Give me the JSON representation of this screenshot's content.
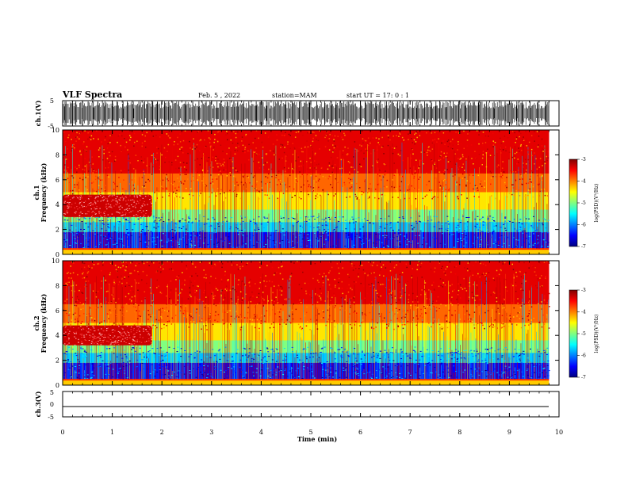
{
  "header": {
    "title": "VLF Spectra",
    "date": "Feb. 5 , 2022",
    "station": "station=MAM",
    "start": "start  UT  =    17: 0  : 1"
  },
  "chart_data": [
    {
      "type": "line",
      "panel": "ch1-waveform",
      "ylabel": "ch.1(V)",
      "ylim": [
        -5,
        5
      ],
      "yticks": [
        "5",
        "-5"
      ]
    },
    {
      "type": "heatmap",
      "panel": "ch1-spectrogram",
      "ylabel_line1": "ch.1",
      "ylabel_line2": "Frequency (kHz)",
      "ylim": [
        0,
        10
      ],
      "yticks": [
        "0",
        "2",
        "4",
        "6",
        "8",
        "10"
      ],
      "colorbar": {
        "label": "log(PSD)(V²/Hz)",
        "range": [
          -7,
          -3
        ],
        "ticks": [
          "-3",
          "-4",
          "-5",
          "-6",
          "-7"
        ]
      },
      "features": [
        {
          "name": "emission-band",
          "t_min": [
            0,
            1.8
          ],
          "f_khz": [
            3.0,
            4.8
          ],
          "log_psd": -3.3
        },
        {
          "name": "background-high",
          "f_khz": [
            5,
            10
          ],
          "log_psd": -3.6
        },
        {
          "name": "background-low",
          "f_khz": [
            0.5,
            2.5
          ],
          "log_psd": -6.5
        }
      ]
    },
    {
      "type": "heatmap",
      "panel": "ch2-spectrogram",
      "ylabel_line1": "ch.2",
      "ylabel_line2": "Frequency (kHz)",
      "ylim": [
        0,
        10
      ],
      "yticks": [
        "0",
        "2",
        "4",
        "6",
        "8",
        "10"
      ],
      "colorbar": {
        "label": "log(PSD)(V²/Hz)",
        "range": [
          -7,
          -3
        ],
        "ticks": [
          "-3",
          "-4",
          "-5",
          "-6",
          "-7"
        ]
      },
      "features": [
        {
          "name": "emission-band",
          "t_min": [
            0,
            1.8
          ],
          "f_khz": [
            3.2,
            4.8
          ],
          "log_psd": -3.3
        },
        {
          "name": "background-high",
          "f_khz": [
            5,
            10
          ],
          "log_psd": -3.5
        },
        {
          "name": "background-low",
          "f_khz": [
            0.5,
            2.5
          ],
          "log_psd": -6.5
        }
      ]
    },
    {
      "type": "line",
      "panel": "ch3-waveform",
      "ylabel": "ch.3(V)",
      "ylim": [
        -5,
        5
      ],
      "yticks": [
        "5",
        "0",
        "-5"
      ],
      "series": [
        {
          "x": [
            0,
            9.8
          ],
          "y": [
            -1.3,
            -1.3
          ]
        }
      ]
    }
  ],
  "x_axis": {
    "label": "Time (min)",
    "range": [
      0,
      10
    ],
    "ticks": [
      "0",
      "1",
      "2",
      "3",
      "4",
      "5",
      "6",
      "7",
      "8",
      "9",
      "10"
    ],
    "data_end": 9.8
  },
  "colors": {
    "jet": [
      "#00007f",
      "#0000ff",
      "#007fff",
      "#00ffff",
      "#7fff7f",
      "#ffff00",
      "#ff7f00",
      "#ff0000",
      "#7f0000"
    ]
  }
}
